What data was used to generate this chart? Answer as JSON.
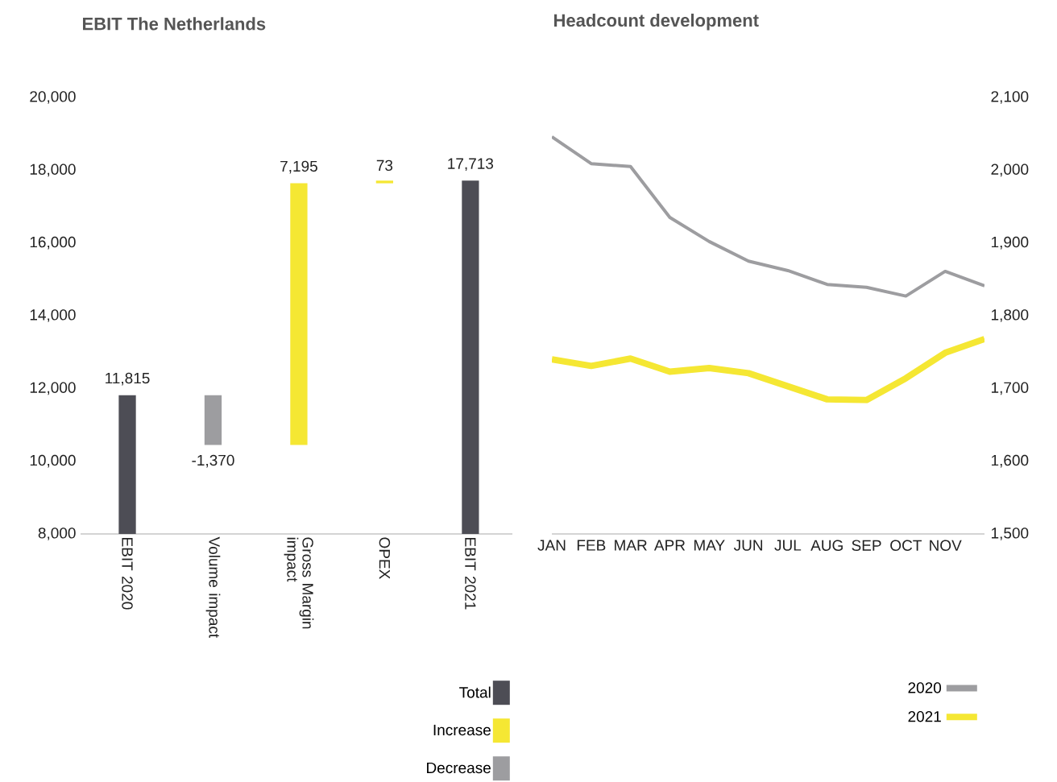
{
  "chart_data": [
    {
      "type": "bar",
      "title": "EBIT The Netherlands",
      "categories": [
        "EBIT 2020",
        "Volume impact",
        "Gross Margin impact",
        "OPEX",
        "EBIT 2021"
      ],
      "series": [
        {
          "name": "Total",
          "color": "#4d4d55",
          "values": [
            11815,
            null,
            null,
            null,
            17713
          ],
          "value_labels": [
            "11,815",
            null,
            null,
            null,
            "17,713"
          ]
        },
        {
          "name": "Increase",
          "color": "#f5e733",
          "values": [
            null,
            null,
            7195,
            73,
            null
          ],
          "base": [
            null,
            null,
            10445,
            17640,
            null
          ],
          "value_labels": [
            null,
            null,
            "7,195",
            "73",
            null
          ]
        },
        {
          "name": "Decrease",
          "color": "#9d9da0",
          "values": [
            null,
            -1370,
            null,
            null,
            null
          ],
          "base": [
            null,
            11815,
            null,
            null,
            null
          ],
          "value_labels": [
            null,
            "-1,370",
            null,
            null,
            null
          ]
        }
      ],
      "ylim": [
        8000,
        20000
      ],
      "yticks": [
        {
          "value": 8000,
          "label": "8,000"
        },
        {
          "value": 10000,
          "label": "10,000"
        },
        {
          "value": 12000,
          "label": "12,000"
        },
        {
          "value": 14000,
          "label": "14,000"
        },
        {
          "value": 16000,
          "label": "16,000"
        },
        {
          "value": 18000,
          "label": "18,000"
        },
        {
          "value": 20000,
          "label": "20,000"
        }
      ],
      "legend": "bottom right"
    },
    {
      "type": "line",
      "title": "Headcount development",
      "categories": [
        "JAN",
        "FEB",
        "MAR",
        "APR",
        "MAY",
        "JUN",
        "JUL",
        "AUG",
        "SEP",
        "OCT",
        "NOV",
        null
      ],
      "series": [
        {
          "name": "2020",
          "color": "#9d9da0",
          "values": [
            2046,
            2009,
            2005,
            1935,
            1902,
            1875,
            1862,
            1843,
            1839,
            1827,
            1861,
            1841
          ]
        },
        {
          "name": "2021",
          "color": "#f5e733",
          "values": [
            1740,
            1731,
            1741,
            1723,
            1728,
            1721,
            1703,
            1685,
            1684,
            1714,
            1749,
            1768
          ]
        }
      ],
      "ylim": [
        1500,
        2100
      ],
      "yticks": [
        {
          "value": 1500,
          "label": "1,500"
        },
        {
          "value": 1600,
          "label": "1,600"
        },
        {
          "value": 1700,
          "label": "1,700"
        },
        {
          "value": 1800,
          "label": "1,800"
        },
        {
          "value": 1900,
          "label": "1,900"
        },
        {
          "value": 2000,
          "label": "2,000"
        },
        {
          "value": 2100,
          "label": "2,100"
        }
      ],
      "legend": "bottom right"
    }
  ]
}
